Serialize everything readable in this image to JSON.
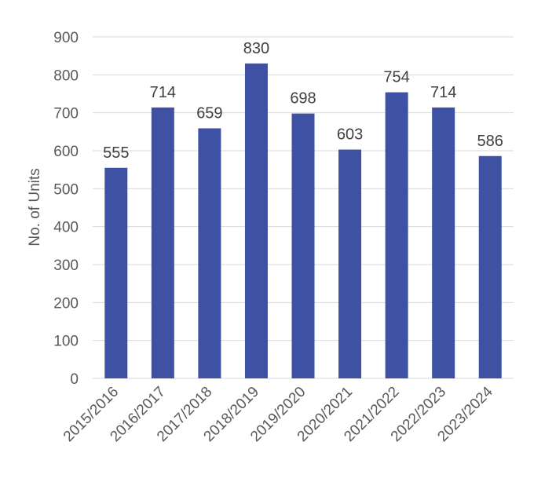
{
  "chart_data": {
    "type": "bar",
    "categories": [
      "2015/2016",
      "2016/2017",
      "2017/2018",
      "2018/2019",
      "2019/2020",
      "2020/2021",
      "2021/2022",
      "2022/2023",
      "2023/2024"
    ],
    "values": [
      555,
      714,
      659,
      830,
      698,
      603,
      754,
      714,
      586
    ],
    "data_labels": [
      "555",
      "714",
      "659",
      "830",
      "698",
      "603",
      "754",
      "714",
      "586"
    ],
    "ylabel": "No. of Units",
    "ylim": [
      0,
      900
    ],
    "yticks": [
      0,
      100,
      200,
      300,
      400,
      500,
      600,
      700,
      800,
      900
    ],
    "ytick_labels": [
      "0",
      "100",
      "200",
      "300",
      "400",
      "500",
      "600",
      "700",
      "800",
      "900"
    ],
    "grid": true,
    "bar_color": "#3f51a3"
  }
}
